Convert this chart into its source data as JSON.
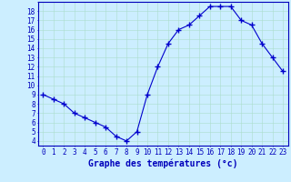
{
  "x": [
    0,
    1,
    2,
    3,
    4,
    5,
    6,
    7,
    8,
    9,
    10,
    11,
    12,
    13,
    14,
    15,
    16,
    17,
    18,
    19,
    20,
    21,
    22,
    23
  ],
  "y": [
    9,
    8.5,
    8,
    7,
    6.5,
    6,
    5.5,
    4.5,
    4,
    5,
    9,
    12,
    14.5,
    16,
    16.5,
    17.5,
    18.5,
    18.5,
    18.5,
    17,
    16.5,
    14.5,
    13,
    11.5
  ],
  "xlabel": "Graphe des températures (°c)",
  "xlim": [
    -0.5,
    23.5
  ],
  "ylim": [
    3.5,
    19.0
  ],
  "yticks": [
    4,
    5,
    6,
    7,
    8,
    9,
    10,
    11,
    12,
    13,
    14,
    15,
    16,
    17,
    18
  ],
  "xticks": [
    0,
    1,
    2,
    3,
    4,
    5,
    6,
    7,
    8,
    9,
    10,
    11,
    12,
    13,
    14,
    15,
    16,
    17,
    18,
    19,
    20,
    21,
    22,
    23
  ],
  "line_color": "#0000cc",
  "marker": "+",
  "marker_size": 4,
  "bg_color": "#cceeff",
  "grid_color": "#aaddcc",
  "axis_label_color": "#0000bb",
  "tick_color": "#0000bb",
  "border_color": "#0000bb",
  "xlabel_fontsize": 7,
  "tick_fontsize": 5.5
}
